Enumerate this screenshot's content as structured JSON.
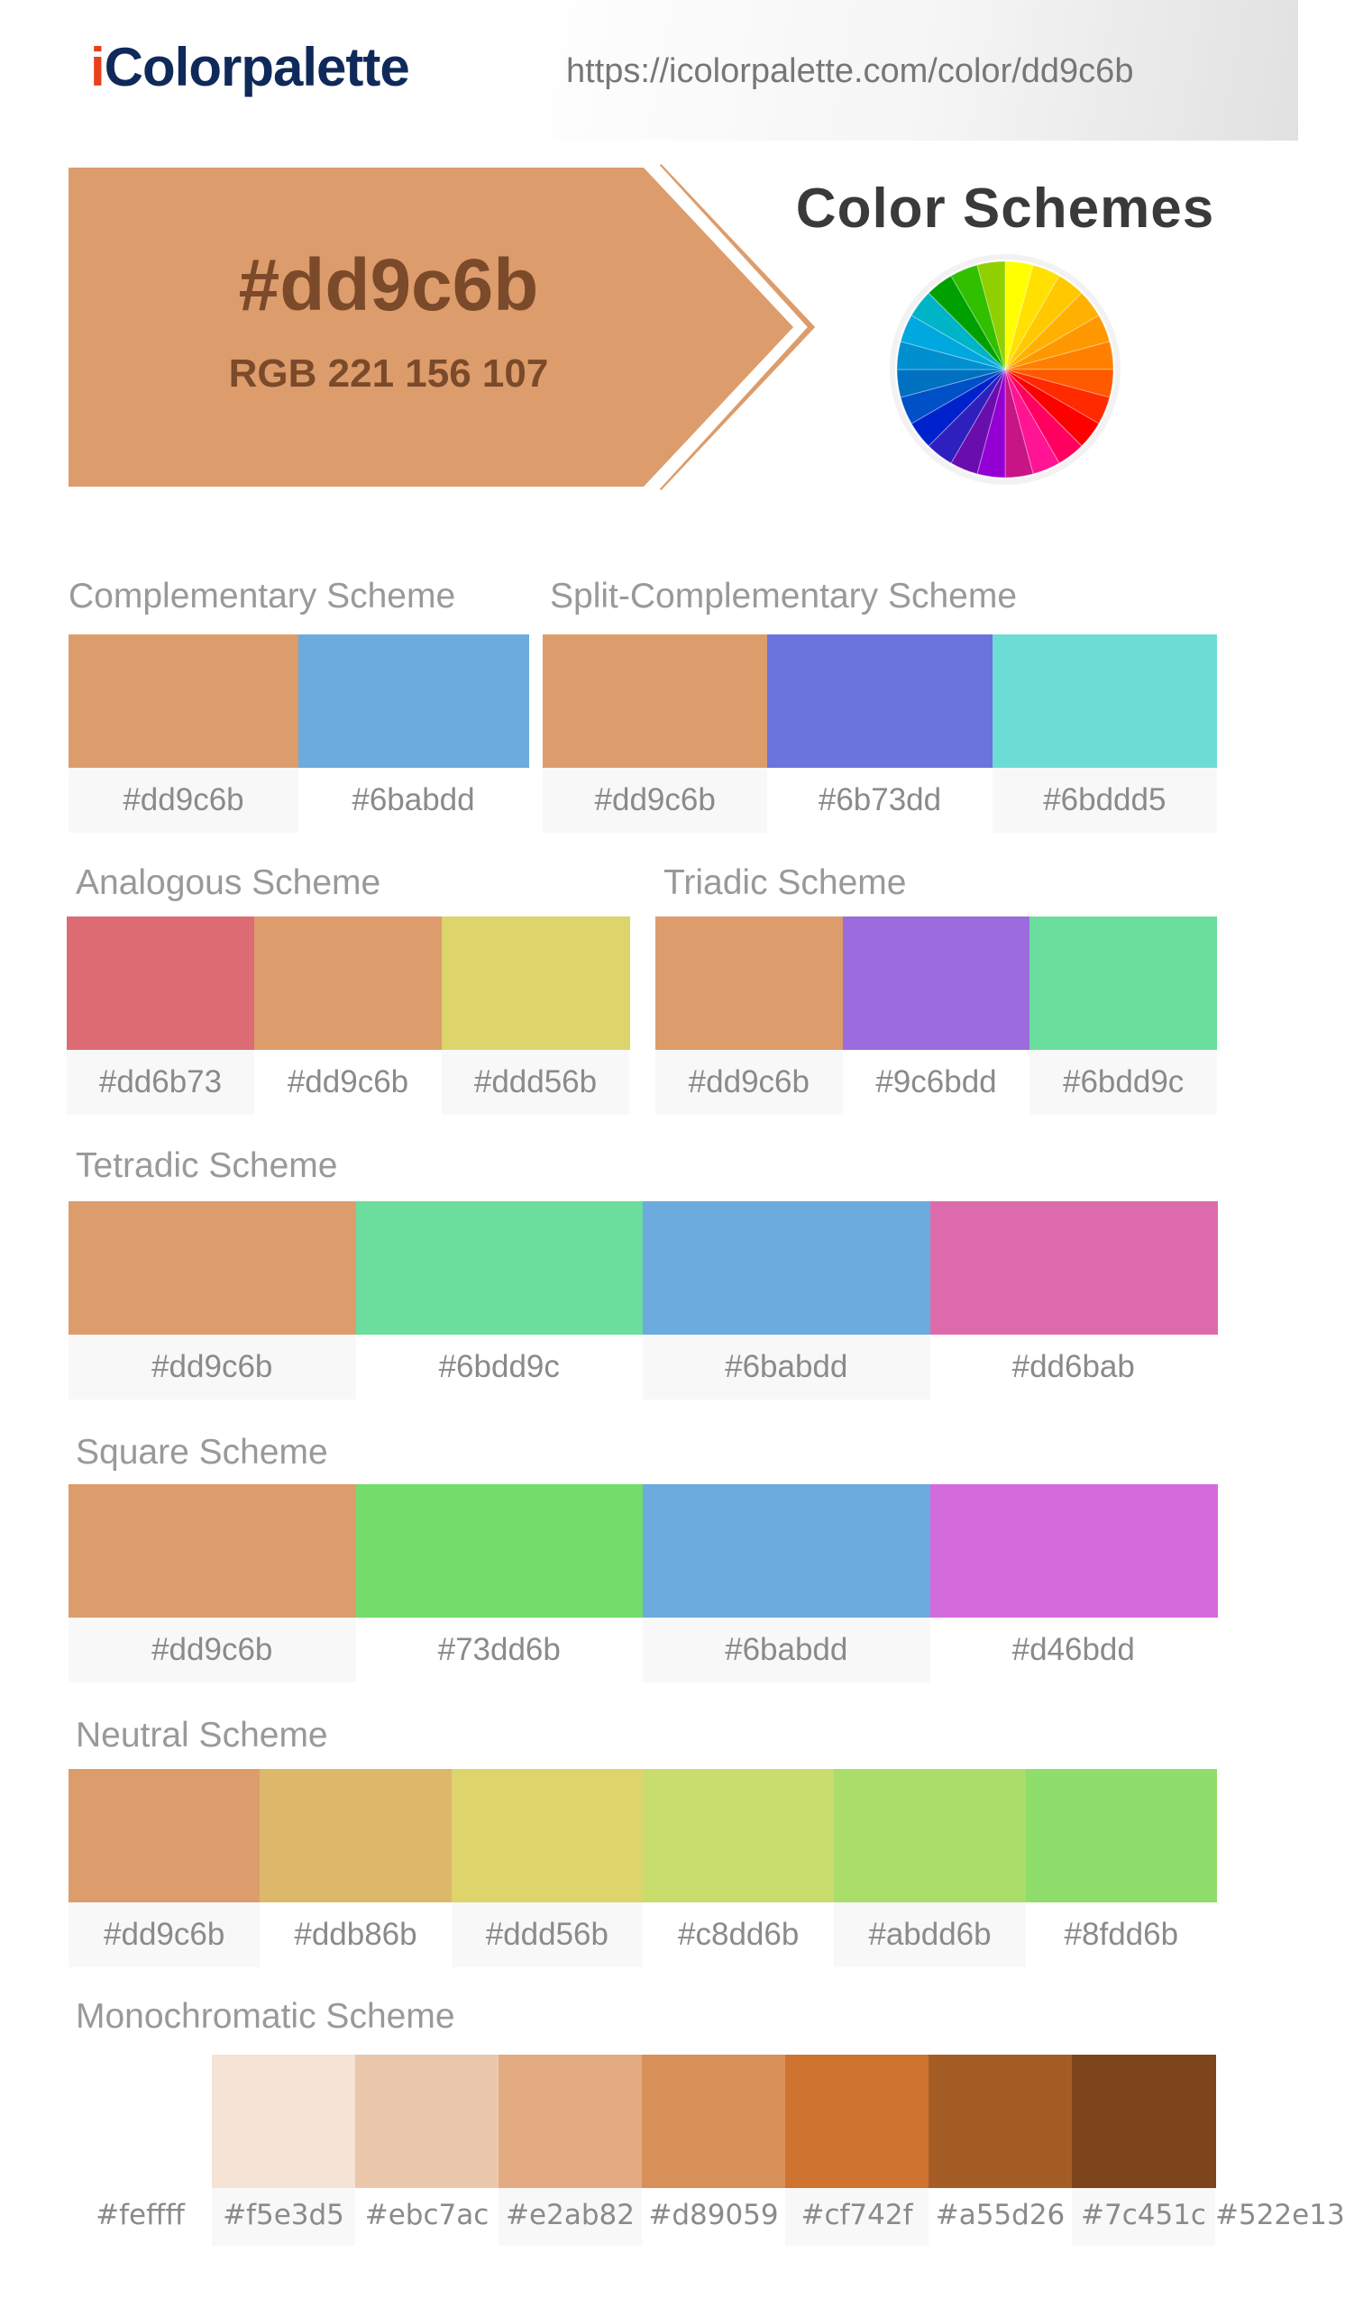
{
  "header": {
    "logo_i": "i",
    "logo_rest": "Colorpalette",
    "url": "https://icolorpalette.com/color/dd9c6b"
  },
  "hero": {
    "hex": "#dd9c6b",
    "rgb": "RGB 221 156 107",
    "color": "#dd9c6b"
  },
  "color_schemes_title": "Color Schemes",
  "wheel_colors": [
    "#ffff00",
    "#ffe000",
    "#ffc800",
    "#ffb000",
    "#ff9800",
    "#ff8000",
    "#ff5a00",
    "#ff2a00",
    "#ff0000",
    "#ff0060",
    "#ff1493",
    "#c71585",
    "#9400d3",
    "#6a0dad",
    "#2e1fbf",
    "#0022cc",
    "#0050c8",
    "#0070c0",
    "#0090d0",
    "#00a8e0",
    "#00b4c8",
    "#00a000",
    "#30c000",
    "#90d000"
  ],
  "schemes": {
    "complementary": {
      "title": "Complementary Scheme",
      "colors": [
        "#dd9c6b",
        "#6babdd"
      ]
    },
    "split": {
      "title": "Split-Complementary Scheme",
      "colors": [
        "#dd9c6b",
        "#6b73dd",
        "#6bddd5"
      ]
    },
    "analogous": {
      "title": "Analogous Scheme",
      "colors": [
        "#dd6b73",
        "#dd9c6b",
        "#ddd56b"
      ]
    },
    "triadic": {
      "title": "Triadic Scheme",
      "colors": [
        "#dd9c6b",
        "#9c6bdd",
        "#6bdd9c"
      ]
    },
    "tetradic": {
      "title": "Tetradic Scheme",
      "colors": [
        "#dd9c6b",
        "#6bdd9c",
        "#6babdd",
        "#dd6bab"
      ]
    },
    "square": {
      "title": "Square Scheme",
      "colors": [
        "#dd9c6b",
        "#73dd6b",
        "#6babdd",
        "#d46bdd"
      ]
    },
    "neutral": {
      "title": "Neutral Scheme",
      "colors": [
        "#dd9c6b",
        "#ddb86b",
        "#ddd56b",
        "#c8dd6b",
        "#abdd6b",
        "#8fdd6b"
      ]
    },
    "monochromatic": {
      "title": "Monochromatic Scheme",
      "colors": [
        "#feffff",
        "#f5e3d5",
        "#ebc7ac",
        "#e2ab82",
        "#d89059",
        "#cf742f",
        "#a55d26",
        "#7c451c",
        "#522e13"
      ]
    }
  }
}
